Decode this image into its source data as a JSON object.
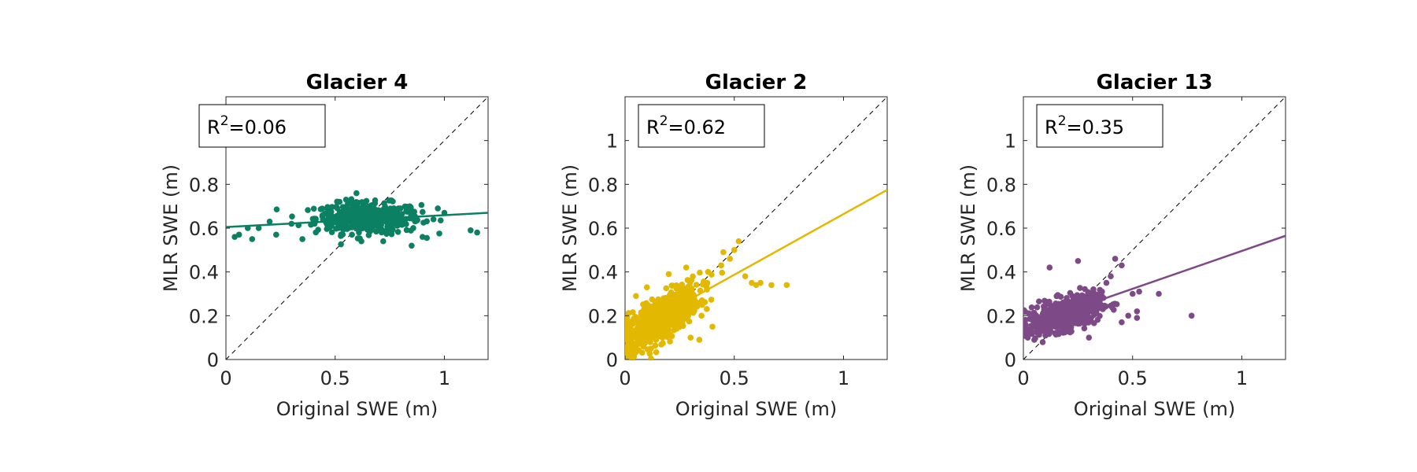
{
  "chart_data": [
    {
      "type": "scatter",
      "title": "Glacier 4",
      "xlabel": "Original SWE (m)",
      "ylabel": "MLR SWE (m)",
      "xlim": [
        0,
        1.2
      ],
      "ylim": [
        0,
        1.2
      ],
      "xticks": [
        "0",
        "0.5",
        "1"
      ],
      "yticks": [
        "0",
        "0.2",
        "0.4",
        "0.6",
        "0.8",
        "1"
      ],
      "color": "#0b8063",
      "annotation": {
        "prefix": "R",
        "sup": "2",
        "value": "=0.06"
      },
      "one_to_one_line": true,
      "fit_line": {
        "x": [
          0,
          1.2
        ],
        "y": [
          0.605,
          0.67
        ]
      },
      "cluster": {
        "x_center": 0.65,
        "y_center": 0.645,
        "x_spread": 0.12,
        "y_spread": 0.035,
        "count": 420
      },
      "points": [
        {
          "x": 0.04,
          "y": 0.56
        },
        {
          "x": 0.06,
          "y": 0.57
        },
        {
          "x": 0.1,
          "y": 0.6
        },
        {
          "x": 0.12,
          "y": 0.55
        },
        {
          "x": 0.15,
          "y": 0.6
        },
        {
          "x": 0.2,
          "y": 0.63
        },
        {
          "x": 0.23,
          "y": 0.57
        },
        {
          "x": 0.3,
          "y": 0.62
        },
        {
          "x": 0.35,
          "y": 0.55
        },
        {
          "x": 0.4,
          "y": 0.64
        },
        {
          "x": 0.52,
          "y": 0.72
        },
        {
          "x": 0.55,
          "y": 0.73
        },
        {
          "x": 0.62,
          "y": 0.54
        },
        {
          "x": 0.72,
          "y": 0.54
        },
        {
          "x": 0.85,
          "y": 0.52
        },
        {
          "x": 0.9,
          "y": 0.56
        },
        {
          "x": 0.95,
          "y": 0.64
        },
        {
          "x": 0.97,
          "y": 0.69
        },
        {
          "x": 1.0,
          "y": 0.67
        },
        {
          "x": 1.12,
          "y": 0.59
        },
        {
          "x": 1.15,
          "y": 0.58
        }
      ]
    },
    {
      "type": "scatter",
      "title": "Glacier 2",
      "xlabel": "Original SWE (m)",
      "ylabel": "MLR SWE (m)",
      "xlim": [
        0,
        1.2
      ],
      "ylim": [
        0,
        1.2
      ],
      "xticks": [
        "0",
        "0.5",
        "1"
      ],
      "yticks": [
        "0",
        "0.2",
        "0.4",
        "0.6",
        "0.8",
        "1"
      ],
      "color": "#e3b800",
      "annotation": {
        "prefix": "R",
        "sup": "2",
        "value": "=0.62"
      },
      "one_to_one_line": true,
      "fit_line": {
        "x": [
          0,
          1.2
        ],
        "y": [
          0.11,
          0.775
        ]
      },
      "cluster": {
        "x_center": 0.16,
        "y_center": 0.19,
        "x_spread": 0.09,
        "y_spread": 0.05,
        "count": 700,
        "trend_slope": 0.6,
        "trend_intercept": 0.09
      },
      "points": [
        {
          "x": 0.45,
          "y": 0.49
        },
        {
          "x": 0.5,
          "y": 0.5
        },
        {
          "x": 0.52,
          "y": 0.54
        },
        {
          "x": 0.48,
          "y": 0.46
        },
        {
          "x": 0.55,
          "y": 0.38
        },
        {
          "x": 0.58,
          "y": 0.35
        },
        {
          "x": 0.6,
          "y": 0.34
        },
        {
          "x": 0.62,
          "y": 0.35
        },
        {
          "x": 0.67,
          "y": 0.34
        },
        {
          "x": 0.74,
          "y": 0.34
        },
        {
          "x": 0.35,
          "y": 0.2
        },
        {
          "x": 0.4,
          "y": 0.15
        },
        {
          "x": 0.34,
          "y": 0.09
        },
        {
          "x": 0.3,
          "y": 0.1
        },
        {
          "x": 0.44,
          "y": 0.43
        },
        {
          "x": 0.38,
          "y": 0.4
        },
        {
          "x": 0.05,
          "y": 0.29
        },
        {
          "x": 0.1,
          "y": 0.33
        },
        {
          "x": 0.2,
          "y": 0.39
        },
        {
          "x": 0.28,
          "y": 0.42
        }
      ]
    },
    {
      "type": "scatter",
      "title": "Glacier 13",
      "xlabel": "Original SWE (m)",
      "ylabel": "MLR SWE (m)",
      "xlim": [
        0,
        1.2
      ],
      "ylim": [
        0,
        1.2
      ],
      "xticks": [
        "0",
        "0.5",
        "1"
      ],
      "yticks": [
        "0",
        "0.2",
        "0.4",
        "0.6",
        "0.8",
        "1"
      ],
      "color": "#7d4a87",
      "annotation": {
        "prefix": "R",
        "sup": "2",
        "value": "=0.35"
      },
      "one_to_one_line": true,
      "fit_line": {
        "x": [
          0,
          1.2
        ],
        "y": [
          0.15,
          0.565
        ]
      },
      "cluster": {
        "x_center": 0.19,
        "y_center": 0.21,
        "x_spread": 0.08,
        "y_spread": 0.035,
        "count": 650,
        "trend_slope": 0.25,
        "trend_intercept": 0.16
      },
      "points": [
        {
          "x": 0.12,
          "y": 0.42
        },
        {
          "x": 0.25,
          "y": 0.45
        },
        {
          "x": 0.42,
          "y": 0.46
        },
        {
          "x": 0.45,
          "y": 0.43
        },
        {
          "x": 0.4,
          "y": 0.38
        },
        {
          "x": 0.38,
          "y": 0.35
        },
        {
          "x": 0.5,
          "y": 0.3
        },
        {
          "x": 0.53,
          "y": 0.31
        },
        {
          "x": 0.48,
          "y": 0.2
        },
        {
          "x": 0.45,
          "y": 0.17
        },
        {
          "x": 0.52,
          "y": 0.19
        },
        {
          "x": 0.52,
          "y": 0.22
        },
        {
          "x": 0.62,
          "y": 0.3
        },
        {
          "x": 0.77,
          "y": 0.2
        },
        {
          "x": 0.3,
          "y": 0.1
        },
        {
          "x": 0.35,
          "y": 0.27
        },
        {
          "x": 0.36,
          "y": 0.31
        },
        {
          "x": 0.02,
          "y": 0.1
        },
        {
          "x": 0.05,
          "y": 0.09
        },
        {
          "x": 0.03,
          "y": 0.14
        }
      ]
    }
  ]
}
